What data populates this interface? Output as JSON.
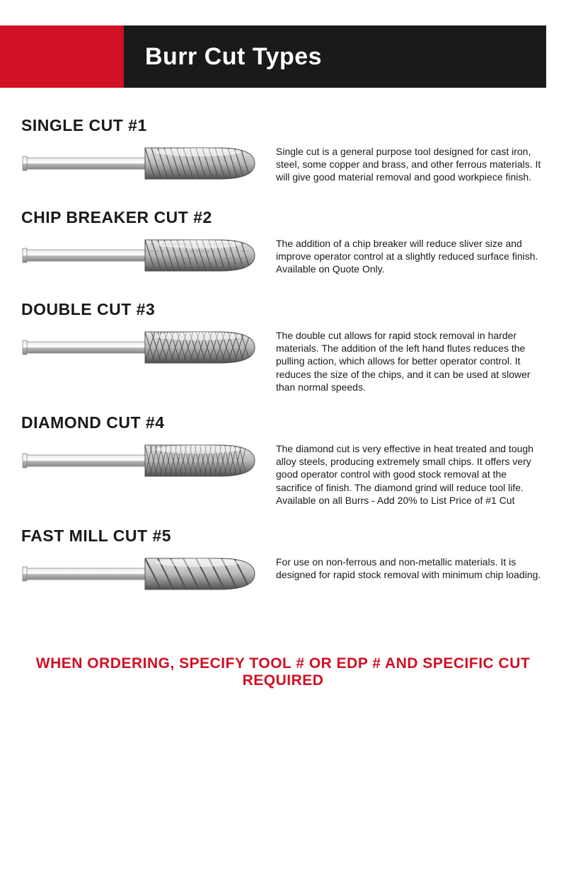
{
  "header": {
    "title": "Burr Cut Types",
    "red_color": "#d01024",
    "black_color": "#1a1a1a",
    "title_color": "#ffffff"
  },
  "cuts": [
    {
      "heading": "SINGLE CUT #1",
      "description": "Single cut is a general purpose tool designed for cast iron, steel, some copper and brass, and other ferrous materials. It will give good material removal and good workpiece finish.",
      "pattern": "single"
    },
    {
      "heading": "CHIP BREAKER CUT #2",
      "description": "The addition of a chip breaker will reduce sliver size and improve operator control at a slightly reduced surface finish. Available on Quote Only.",
      "pattern": "chip"
    },
    {
      "heading": "DOUBLE CUT #3",
      "description": "The double cut allows for rapid stock removal in harder materials. The addition of the left hand flutes reduces the pulling action, which allows for better operator control. It reduces the size of the chips, and it can be used at slower than normal speeds.",
      "pattern": "double"
    },
    {
      "heading": "DIAMOND CUT #4",
      "description": "The diamond cut is very effective in heat treated and tough alloy steels, producing extremely small chips. It offers very good operator control with good stock removal at the sacrifice of finish. The diamond grind will reduce tool life. Available on all Burrs - Add 20% to List Price of #1 Cut",
      "pattern": "diamond"
    },
    {
      "heading": "FAST MILL CUT #5",
      "description": "For use on non-ferrous and non-metallic materials. It is designed for rapid stock removal with minimum chip loading.",
      "pattern": "fastmill"
    }
  ],
  "footer": {
    "text": "WHEN ORDERING, SPECIFY TOOL # OR EDP # AND SPECIFIC CUT REQUIRED",
    "color": "#d01024"
  },
  "burr_style": {
    "metal_light": "#e8e8e8",
    "metal_mid": "#b8b8b8",
    "metal_dark": "#888888",
    "stroke": "#505050"
  }
}
